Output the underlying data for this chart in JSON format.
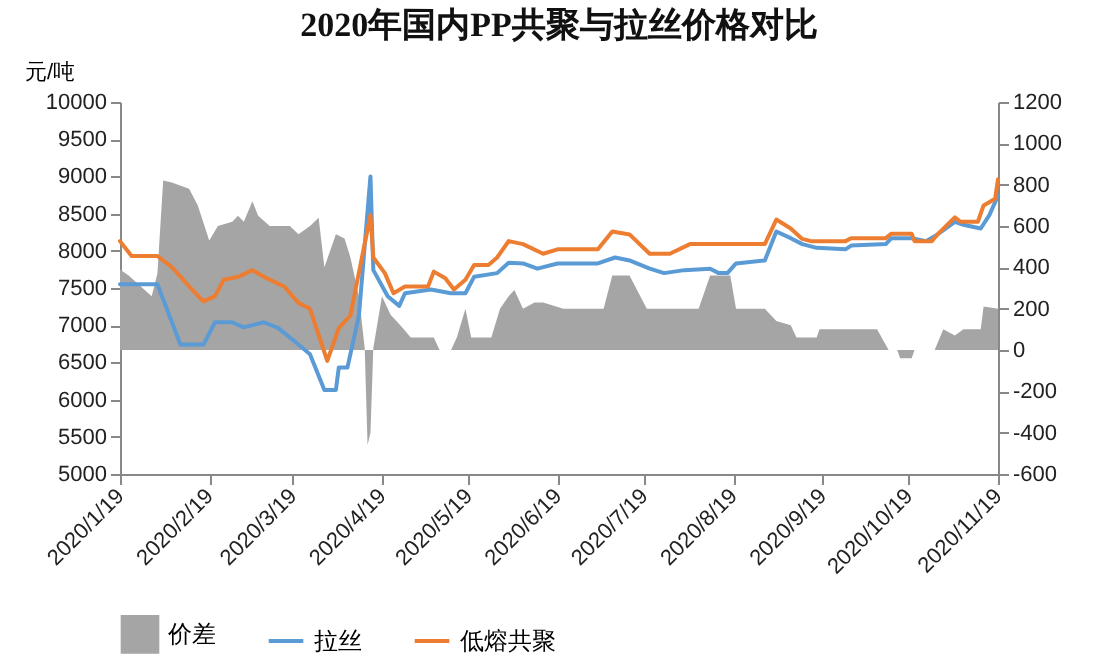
{
  "chart_data": {
    "type": "line",
    "title": "2020年国内PP共聚与拉丝价格对比",
    "ylabel": "元/吨",
    "legend": "bottom",
    "xlim": [
      "2020-01-19",
      "2020-11-19"
    ],
    "xticks": [
      {
        "value": "2020-01-19",
        "label": "2020/1/19"
      },
      {
        "value": "2020-02-19",
        "label": "2020/2/19"
      },
      {
        "value": "2020-03-19",
        "label": "2020/3/19"
      },
      {
        "value": "2020-04-19",
        "label": "2020/4/19"
      },
      {
        "value": "2020-05-19",
        "label": "2020/5/19"
      },
      {
        "value": "2020-06-19",
        "label": "2020/6/19"
      },
      {
        "value": "2020-07-19",
        "label": "2020/7/19"
      },
      {
        "value": "2020-08-19",
        "label": "2020/8/19"
      },
      {
        "value": "2020-09-19",
        "label": "2020/9/19"
      },
      {
        "value": "2020-10-19",
        "label": "2020/10/19"
      },
      {
        "value": "2020-11-19",
        "label": "2020/11/19"
      }
    ],
    "ylim": [
      5000,
      10000
    ],
    "yticks": [
      5000,
      5500,
      6000,
      6500,
      7000,
      7500,
      8000,
      8500,
      9000,
      9500,
      10000
    ],
    "y2lim": [
      -600,
      1200
    ],
    "y2ticks": [
      -600,
      -400,
      -200,
      0,
      200,
      400,
      600,
      800,
      1000,
      1200
    ],
    "series": [
      {
        "name": "价差",
        "type": "area",
        "axis": "y2",
        "color": "#a5a5a5",
        "x": [
          "2020-01-19",
          "2020-01-22",
          "2020-01-30",
          "2020-02-01",
          "2020-02-03",
          "2020-02-06",
          "2020-02-12",
          "2020-02-15",
          "2020-02-19",
          "2020-02-22",
          "2020-02-27",
          "2020-02-29",
          "2020-03-02",
          "2020-03-05",
          "2020-03-07",
          "2020-03-11",
          "2020-03-18",
          "2020-03-21",
          "2020-03-25",
          "2020-03-28",
          "2020-03-30",
          "2020-04-03",
          "2020-04-06",
          "2020-04-08",
          "2020-04-11",
          "2020-04-13",
          "2020-04-14",
          "2020-04-15",
          "2020-04-16",
          "2020-04-19",
          "2020-04-22",
          "2020-04-26",
          "2020-04-29",
          "2020-05-07",
          "2020-05-09",
          "2020-05-13",
          "2020-05-15",
          "2020-05-18",
          "2020-05-20",
          "2020-05-27",
          "2020-05-30",
          "2020-06-02",
          "2020-06-04",
          "2020-06-07",
          "2020-06-11",
          "2020-06-14",
          "2020-06-21",
          "2020-07-05",
          "2020-07-08",
          "2020-07-14",
          "2020-07-20",
          "2020-08-07",
          "2020-08-11",
          "2020-08-18",
          "2020-08-20",
          "2020-08-30",
          "2020-09-03",
          "2020-09-08",
          "2020-09-10",
          "2020-09-17",
          "2020-09-18",
          "2020-10-08",
          "2020-10-12",
          "2020-10-15",
          "2020-10-16",
          "2020-10-20",
          "2020-10-21",
          "2020-10-28",
          "2020-10-31",
          "2020-11-04",
          "2020-11-07",
          "2020-11-13",
          "2020-11-14",
          "2020-11-19"
        ],
        "values": [
          390,
          360,
          260,
          370,
          820,
          810,
          780,
          700,
          530,
          600,
          620,
          650,
          620,
          720,
          650,
          600,
          600,
          560,
          600,
          640,
          400,
          560,
          540,
          450,
          260,
          10,
          -460,
          -400,
          10,
          260,
          170,
          110,
          60,
          60,
          0,
          0,
          60,
          200,
          60,
          60,
          200,
          260,
          290,
          200,
          230,
          230,
          200,
          200,
          360,
          360,
          200,
          200,
          360,
          360,
          200,
          200,
          140,
          120,
          60,
          60,
          100,
          100,
          0,
          0,
          -40,
          -40,
          0,
          0,
          100,
          70,
          100,
          100,
          210,
          200
        ]
      },
      {
        "name": "拉丝",
        "color": "#5b9bd5",
        "x": [
          "2020-01-19",
          "2020-02-01",
          "2020-02-09",
          "2020-02-17",
          "2020-02-21",
          "2020-02-27",
          "2020-03-02",
          "2020-03-09",
          "2020-03-14",
          "2020-03-21",
          "2020-03-25",
          "2020-03-30",
          "2020-04-03",
          "2020-04-04",
          "2020-04-07",
          "2020-04-11",
          "2020-04-15",
          "2020-04-16",
          "2020-04-21",
          "2020-04-25",
          "2020-04-27",
          "2020-05-06",
          "2020-05-13",
          "2020-05-18",
          "2020-05-21",
          "2020-05-29",
          "2020-06-02",
          "2020-06-07",
          "2020-06-12",
          "2020-06-19",
          "2020-07-03",
          "2020-07-09",
          "2020-07-14",
          "2020-07-21",
          "2020-07-26",
          "2020-08-02",
          "2020-08-11",
          "2020-08-14",
          "2020-08-17",
          "2020-08-20",
          "2020-08-30",
          "2020-09-03",
          "2020-09-08",
          "2020-09-12",
          "2020-09-17",
          "2020-09-27",
          "2020-09-29",
          "2020-10-11",
          "2020-10-13",
          "2020-10-20",
          "2020-10-25",
          "2020-10-29",
          "2020-11-04",
          "2020-11-07",
          "2020-11-13",
          "2020-11-16",
          "2020-11-19"
        ],
        "values": [
          7550,
          7550,
          6740,
          6740,
          7040,
          7040,
          6970,
          7040,
          6960,
          6740,
          6610,
          6130,
          6130,
          6430,
          6430,
          7130,
          9000,
          7740,
          7390,
          7260,
          7430,
          7480,
          7430,
          7430,
          7650,
          7700,
          7840,
          7830,
          7760,
          7830,
          7830,
          7910,
          7870,
          7760,
          7700,
          7740,
          7760,
          7700,
          7700,
          7830,
          7870,
          8260,
          8170,
          8090,
          8040,
          8020,
          8070,
          8090,
          8170,
          8170,
          8130,
          8220,
          8390,
          8350,
          8300,
          8480,
          8740
        ]
      },
      {
        "name": "低熔共聚",
        "color": "#ed7d31",
        "x": [
          "2020-01-19",
          "2020-01-23",
          "2020-02-01",
          "2020-02-06",
          "2020-02-13",
          "2020-02-17",
          "2020-02-21",
          "2020-02-24",
          "2020-02-29",
          "2020-03-05",
          "2020-03-09",
          "2020-03-16",
          "2020-03-21",
          "2020-03-25",
          "2020-03-31",
          "2020-04-04",
          "2020-04-08",
          "2020-04-15",
          "2020-04-16",
          "2020-04-20",
          "2020-04-23",
          "2020-04-27",
          "2020-05-05",
          "2020-05-07",
          "2020-05-11",
          "2020-05-14",
          "2020-05-18",
          "2020-05-21",
          "2020-05-26",
          "2020-05-29",
          "2020-06-02",
          "2020-06-07",
          "2020-06-14",
          "2020-06-19",
          "2020-07-03",
          "2020-07-08",
          "2020-07-14",
          "2020-07-21",
          "2020-07-28",
          "2020-08-04",
          "2020-08-30",
          "2020-09-03",
          "2020-09-08",
          "2020-09-12",
          "2020-09-15",
          "2020-09-27",
          "2020-09-29",
          "2020-10-11",
          "2020-10-13",
          "2020-10-20",
          "2020-10-21",
          "2020-10-27",
          "2020-10-29",
          "2020-11-04",
          "2020-11-06",
          "2020-11-12",
          "2020-11-14",
          "2020-11-18",
          "2020-11-19"
        ],
        "values": [
          8130,
          7930,
          7930,
          7780,
          7480,
          7320,
          7390,
          7610,
          7650,
          7740,
          7650,
          7520,
          7300,
          7220,
          6520,
          6960,
          7130,
          8480,
          7910,
          7700,
          7430,
          7520,
          7520,
          7720,
          7630,
          7480,
          7610,
          7810,
          7810,
          7910,
          8130,
          8090,
          7960,
          8020,
          8020,
          8260,
          8220,
          7960,
          7960,
          8090,
          8090,
          8420,
          8300,
          8160,
          8130,
          8130,
          8170,
          8170,
          8230,
          8230,
          8130,
          8130,
          8220,
          8450,
          8390,
          8390,
          8610,
          8700,
          8960
        ]
      }
    ]
  }
}
